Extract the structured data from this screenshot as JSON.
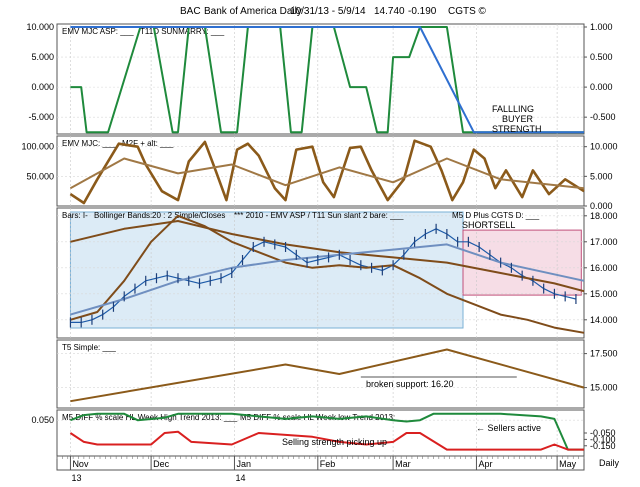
{
  "header": {
    "symbol": "BAC",
    "name": "Bank of America Daily",
    "range": "10/31/13 - 5/9/14",
    "price": "14.740",
    "change": "-0.190",
    "brand": "CGTS ©"
  },
  "x_axis": {
    "months": [
      {
        "label": "Nov",
        "sub": "13",
        "day": 0
      },
      {
        "label": "Dec",
        "sub": "",
        "day": 30
      },
      {
        "label": "Jan",
        "sub": "14",
        "day": 61
      },
      {
        "label": "Feb",
        "sub": "",
        "day": 92
      },
      {
        "label": "Mar",
        "sub": "",
        "day": 120
      },
      {
        "label": "Apr",
        "sub": "",
        "day": 151
      },
      {
        "label": "May",
        "sub": "",
        "day": 181
      }
    ],
    "period_label": "Daily",
    "start_day": -5,
    "end_day": 191
  },
  "chart_data": [
    {
      "type": "line",
      "panel": "emv_mjc_asp",
      "labels": [
        "EMV MJC ASP: ___",
        "T11D SUNMARRY: ___"
      ],
      "left_ticks": [
        "10.000",
        "5.000",
        "0.000",
        "-5.000"
      ],
      "right_ticks": [
        "1.000",
        "0.500",
        "0.000",
        "-0.500"
      ],
      "ylim": [
        -7.8,
        10.5
      ],
      "series": [
        {
          "color": "#1f8a3c",
          "x": [
            0,
            4,
            6,
            14,
            26,
            31,
            38,
            40,
            44,
            50,
            56,
            62,
            66,
            78,
            82,
            86,
            90,
            98,
            104,
            110,
            114,
            118,
            120,
            126,
            130,
            140,
            146,
            150,
            191
          ],
          "y": [
            0,
            0,
            -7.5,
            -7.5,
            10,
            10,
            -7.5,
            -7.5,
            10,
            10,
            -7.5,
            -7.5,
            10,
            10,
            -7.5,
            -7.5,
            10,
            10,
            0,
            0,
            -7.5,
            -7.5,
            5,
            5,
            10,
            10,
            -7.5,
            -7.5,
            -7.5
          ]
        },
        {
          "color": "#2f6fd0",
          "x": [
            0,
            130,
            150,
            191
          ],
          "y": [
            10,
            10,
            -7.5,
            -7.5
          ]
        }
      ],
      "annotations": [
        "FALLLING",
        "BUYER",
        "STRENGTH"
      ]
    },
    {
      "type": "line",
      "panel": "emv_mjc",
      "labels": [
        "EMV MJC: ___",
        "M2F + alt: ___"
      ],
      "left_ticks": [
        "100.000",
        "50.000"
      ],
      "right_ticks": [
        "10.000",
        "5.000",
        "0.000"
      ],
      "ylim": [
        0,
        118
      ],
      "series": [
        {
          "color": "#8b5a1a",
          "x": [
            0,
            5,
            10,
            18,
            25,
            28,
            34,
            40,
            44,
            50,
            54,
            58,
            62,
            66,
            70,
            76,
            80,
            84,
            90,
            94,
            98,
            104,
            108,
            112,
            118,
            124,
            128,
            134,
            138,
            142,
            146,
            150,
            154,
            158,
            162,
            168,
            172,
            178,
            184,
            191
          ],
          "y": [
            20,
            5,
            45,
            105,
            100,
            70,
            25,
            10,
            75,
            108,
            60,
            10,
            95,
            105,
            85,
            30,
            10,
            95,
            100,
            40,
            15,
            98,
            100,
            60,
            10,
            45,
            110,
            100,
            60,
            10,
            40,
            95,
            80,
            30,
            60,
            15,
            60,
            20,
            45,
            25
          ]
        },
        {
          "color": "#a07845",
          "x": [
            0,
            20,
            40,
            60,
            80,
            100,
            120,
            140,
            160,
            191
          ],
          "y": [
            30,
            80,
            55,
            70,
            35,
            65,
            40,
            80,
            45,
            30
          ]
        }
      ]
    },
    {
      "type": "line",
      "panel": "price",
      "labels": [
        "Bars: I-",
        "Bollinger Bands:",
        "20 : 2 Simple/Closes",
        "***  2010 - EMV ASP / T11 Sun slant 2 bare: ___",
        "M5 D Plus CGTS D: ___"
      ],
      "right_ticks": [
        "18.000",
        "17.000",
        "16.000",
        "15.000",
        "14.000"
      ],
      "ylim": [
        13.3,
        18.3
      ],
      "series": [
        {
          "color": "#1c5aa8",
          "x": [
            0,
            4,
            8,
            12,
            16,
            20,
            24,
            28,
            32,
            36,
            40,
            44,
            48,
            52,
            56,
            60,
            64,
            68,
            72,
            76,
            80,
            84,
            88,
            92,
            96,
            100,
            104,
            108,
            112,
            116,
            120,
            124,
            128,
            132,
            136,
            140,
            144,
            148,
            152,
            156,
            160,
            164,
            168,
            172,
            176,
            180,
            184,
            188
          ],
          "y": [
            13.9,
            13.9,
            14.0,
            14.2,
            14.5,
            14.9,
            15.2,
            15.5,
            15.6,
            15.7,
            15.6,
            15.5,
            15.4,
            15.5,
            15.6,
            15.8,
            16.3,
            16.8,
            17.0,
            16.9,
            16.8,
            16.5,
            16.2,
            16.3,
            16.4,
            16.5,
            16.3,
            16.1,
            16.0,
            15.9,
            16.1,
            16.5,
            17.0,
            17.3,
            17.5,
            17.3,
            17.0,
            17.0,
            16.8,
            16.5,
            16.2,
            16.0,
            15.7,
            15.5,
            15.2,
            15.0,
            14.9,
            14.8
          ]
        },
        {
          "color": "#7f4c1a",
          "x": [
            0,
            20,
            40,
            60,
            80,
            100,
            120,
            140,
            160,
            180,
            191
          ],
          "y": [
            17.0,
            17.5,
            17.8,
            17.3,
            16.9,
            16.6,
            16.4,
            16.2,
            15.8,
            15.4,
            15.1
          ]
        },
        {
          "color": "#7f4c1a",
          "x": [
            0,
            10,
            20,
            30,
            40,
            50,
            60,
            70,
            80,
            90,
            100,
            110,
            120,
            130,
            140,
            150,
            160,
            170,
            180,
            191
          ],
          "y": [
            14.0,
            14.3,
            15.5,
            17.0,
            18.0,
            17.6,
            17.0,
            16.6,
            16.2,
            16.0,
            16.1,
            16.0,
            16.1,
            15.6,
            15.0,
            14.6,
            14.2,
            14.0,
            13.7,
            13.5
          ]
        },
        {
          "color": "#6f8fc0",
          "x": [
            0,
            20,
            40,
            60,
            80,
            100,
            120,
            140,
            160,
            191
          ],
          "y": [
            14.2,
            14.8,
            15.5,
            16.0,
            16.3,
            16.5,
            16.7,
            16.9,
            16.2,
            15.5
          ]
        }
      ],
      "annotations": [
        "SHORTSELL"
      ]
    },
    {
      "type": "line",
      "panel": "t5_simple",
      "labels": [
        "T5 Simple: ___"
      ],
      "right_ticks": [
        "17.500",
        "15.000"
      ],
      "ylim": [
        13.5,
        18.5
      ],
      "series": [
        {
          "color": "#8b5a1a",
          "x": [
            0,
            80,
            100,
            140,
            191
          ],
          "y": [
            14.0,
            16.7,
            16.0,
            17.8,
            15.0
          ]
        }
      ],
      "annotations": [
        "broken support: 16.20"
      ]
    },
    {
      "type": "line",
      "panel": "m5_diff",
      "labels": [
        "M5 DIFF % scale HL Week High Trend 2013: ___",
        "M5 DIFF % scale HL Week low Trend 2013: ___"
      ],
      "left_ticks": [
        "0.050"
      ],
      "right_ticks": [
        "-0.050",
        "-0.100",
        "-0.150"
      ],
      "ylim": [
        -0.23,
        0.13
      ],
      "series": [
        {
          "color": "#1f8a3c",
          "x": [
            0,
            5,
            10,
            20,
            25,
            35,
            40,
            60,
            70,
            80,
            90,
            100,
            110,
            120,
            125,
            130,
            135,
            150,
            160,
            175,
            180,
            185,
            191
          ],
          "y": [
            0.05,
            0.09,
            0.1,
            0.1,
            0.05,
            0.07,
            0.1,
            0.1,
            0.08,
            0.06,
            0.08,
            0.06,
            0.08,
            0.05,
            0.04,
            0.05,
            0.1,
            0.1,
            0.1,
            0.08,
            0.06,
            -0.18,
            -0.18
          ]
        },
        {
          "color": "#d92020",
          "x": [
            0,
            5,
            10,
            30,
            35,
            40,
            45,
            60,
            70,
            90,
            100,
            110,
            120,
            125,
            130,
            140,
            150,
            175,
            180,
            185,
            191
          ],
          "y": [
            -0.05,
            -0.12,
            -0.14,
            -0.14,
            -0.05,
            -0.04,
            -0.12,
            -0.14,
            -0.05,
            -0.08,
            -0.12,
            -0.14,
            -0.12,
            -0.05,
            -0.05,
            -0.18,
            -0.18,
            -0.18,
            -0.14,
            -0.18,
            -0.18
          ]
        }
      ],
      "annotations": [
        "Selling strength picking up",
        "← Sellers active"
      ]
    }
  ]
}
